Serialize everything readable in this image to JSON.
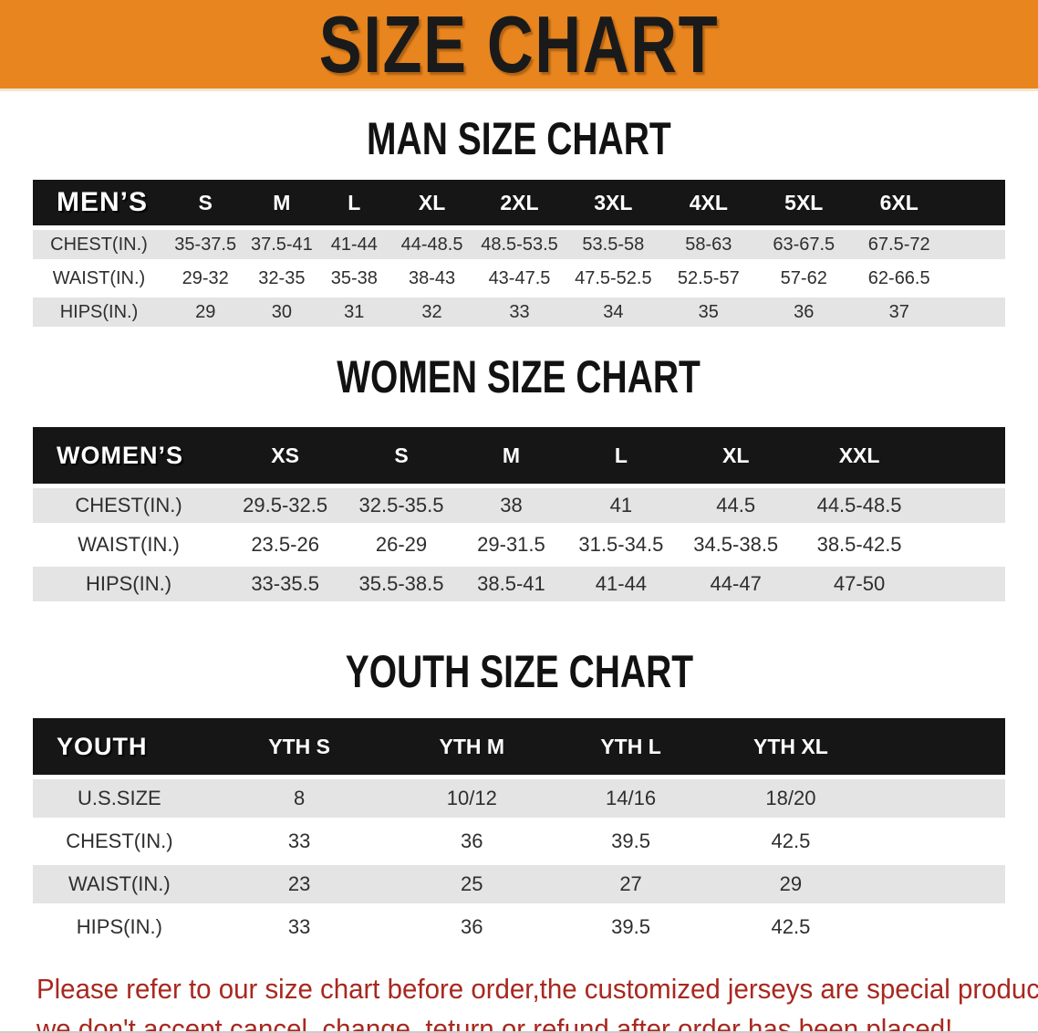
{
  "banner": {
    "title": "SIZE CHART"
  },
  "sections": [
    {
      "title": "MAN SIZE CHART",
      "header_label": "MEN’S",
      "columns": [
        "S",
        "M",
        "L",
        "XL",
        "2XL",
        "3XL",
        "4XL",
        "5XL",
        "6XL"
      ],
      "rows": [
        {
          "label": "CHEST(IN.)",
          "values": [
            "35-37.5",
            "37.5-41",
            "41-44",
            "44-48.5",
            "48.5-53.5",
            "53.5-58",
            "58-63",
            "63-67.5",
            "67.5-72"
          ]
        },
        {
          "label": "WAIST(IN.)",
          "values": [
            "29-32",
            "32-35",
            "35-38",
            "38-43",
            "43-47.5",
            "47.5-52.5",
            "52.5-57",
            "57-62",
            "62-66.5"
          ]
        },
        {
          "label": "HIPS(IN.)",
          "values": [
            "29",
            "30",
            "31",
            "32",
            "33",
            "34",
            "35",
            "36",
            "37"
          ]
        }
      ]
    },
    {
      "title": "WOMEN SIZE CHART",
      "header_label": "WOMEN’S",
      "columns": [
        "XS",
        "S",
        "M",
        "L",
        "XL",
        "XXL"
      ],
      "rows": [
        {
          "label": "CHEST(IN.)",
          "values": [
            "29.5-32.5",
            "32.5-35.5",
            "38",
            "41",
            "44.5",
            "44.5-48.5"
          ]
        },
        {
          "label": "WAIST(IN.)",
          "values": [
            "23.5-26",
            "26-29",
            "29-31.5",
            "31.5-34.5",
            "34.5-38.5",
            "38.5-42.5"
          ]
        },
        {
          "label": "HIPS(IN.)",
          "values": [
            "33-35.5",
            "35.5-38.5",
            "38.5-41",
            "41-44",
            "44-47",
            "47-50"
          ]
        }
      ]
    },
    {
      "title": "YOUTH SIZE CHART",
      "header_label": "YOUTH",
      "columns": [
        "YTH S",
        "YTH M",
        "YTH L",
        "YTH XL"
      ],
      "rows": [
        {
          "label": "U.S.SIZE",
          "values": [
            "8",
            "10/12",
            "14/16",
            "18/20"
          ]
        },
        {
          "label": "CHEST(IN.)",
          "values": [
            "33",
            "36",
            "39.5",
            "42.5"
          ]
        },
        {
          "label": "WAIST(IN.)",
          "values": [
            "23",
            "25",
            "27",
            "29"
          ]
        },
        {
          "label": "HIPS(IN.)",
          "values": [
            "33",
            "36",
            "39.5",
            "42.5"
          ]
        }
      ]
    }
  ],
  "disclaimer": {
    "line1": "Please refer to our size chart before order,the customized jerseys are special products,",
    "line2": "we don't accept cancel, change, teturn or refund after order has been placed!"
  },
  "colors": {
    "banner_bg": "#e8851e",
    "table_header_bg": "#161616",
    "row_alt_bg": "#e4e4e4",
    "disclaimer_color": "#a8281f"
  }
}
